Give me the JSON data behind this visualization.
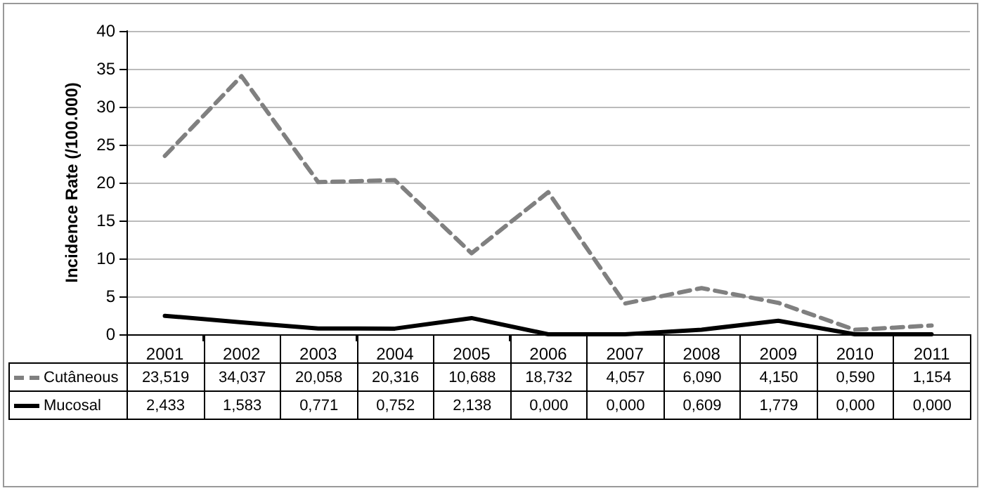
{
  "chart_data": {
    "type": "line",
    "ylabel": "Incidence Rate (/100.000)",
    "categories": [
      "2001",
      "2002",
      "2003",
      "2004",
      "2005",
      "2006",
      "2007",
      "2008",
      "2009",
      "2010",
      "2011"
    ],
    "series": [
      {
        "name": "Cutâneous",
        "color": "#808080",
        "line_style": "dashed",
        "values": [
          23.519,
          34.037,
          20.058,
          20.316,
          10.688,
          18.732,
          4.057,
          6.09,
          4.15,
          0.59,
          1.154
        ],
        "value_labels": [
          "23,519",
          "34,037",
          "20,058",
          "20,316",
          "10,688",
          "18,732",
          "4,057",
          "6,090",
          "4,150",
          "0,590",
          "1,154"
        ]
      },
      {
        "name": "Mucosal",
        "color": "#000000",
        "line_style": "solid",
        "values": [
          2.433,
          1.583,
          0.771,
          0.752,
          2.138,
          0.0,
          0.0,
          0.609,
          1.779,
          0.0,
          0.0
        ],
        "value_labels": [
          "2,433",
          "1,583",
          "0,771",
          "0,752",
          "2,138",
          "0,000",
          "0,000",
          "0,609",
          "1,779",
          "0,000",
          "0,000"
        ]
      }
    ],
    "ylim": [
      0,
      40
    ],
    "yticks": [
      0,
      5,
      10,
      15,
      20,
      25,
      30,
      35,
      40
    ],
    "grid": "y",
    "marker": "none",
    "legend": "bottom"
  }
}
